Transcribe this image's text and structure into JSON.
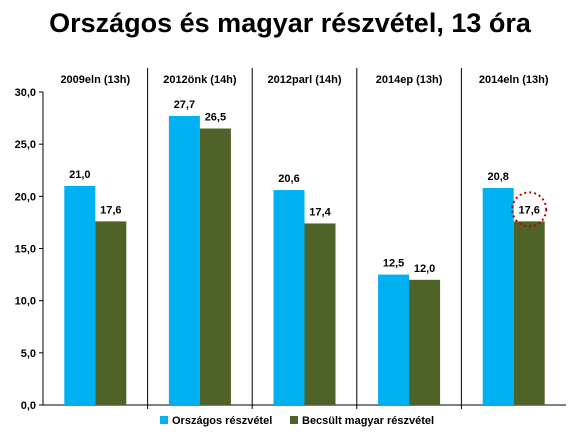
{
  "title": "Országos és magyar részvétel, 13 óra",
  "colors": {
    "series1": "#00b0f0",
    "series2": "#4f6228",
    "highlight_circle": "#c00000"
  },
  "chart_data": {
    "type": "bar",
    "title": "Országos és magyar részvétel, 13 óra",
    "categories": [
      "2009eln (13h)",
      "2012önk (14h)",
      "2012parl (14h)",
      "2014ep (13h)",
      "2014eln (13h)"
    ],
    "series": [
      {
        "name": "Országos  részvétel",
        "values": [
          21.0,
          27.7,
          20.6,
          12.5,
          20.8
        ],
        "labels": [
          "21,0",
          "27,7",
          "20,6",
          "12,5",
          "20,8"
        ]
      },
      {
        "name": "Becsült  magyar  részvétel",
        "values": [
          17.6,
          26.5,
          17.4,
          12.0,
          17.6
        ],
        "labels": [
          "17,6",
          "26,5",
          "17,4",
          "12,0",
          "17,6"
        ]
      }
    ],
    "ylim": [
      0,
      30
    ],
    "yticks": [
      0,
      5,
      10,
      15,
      20,
      25,
      30
    ],
    "ytick_labels": [
      "0,0",
      "5,0",
      "10,0",
      "15,0",
      "20,0",
      "25,0",
      "30,0"
    ],
    "category_labels_position": "top",
    "category_separators": true,
    "highlighted_point": {
      "series": 1,
      "category": 4,
      "style": "dotted-circle"
    },
    "legend": "bottom",
    "grid": false
  }
}
